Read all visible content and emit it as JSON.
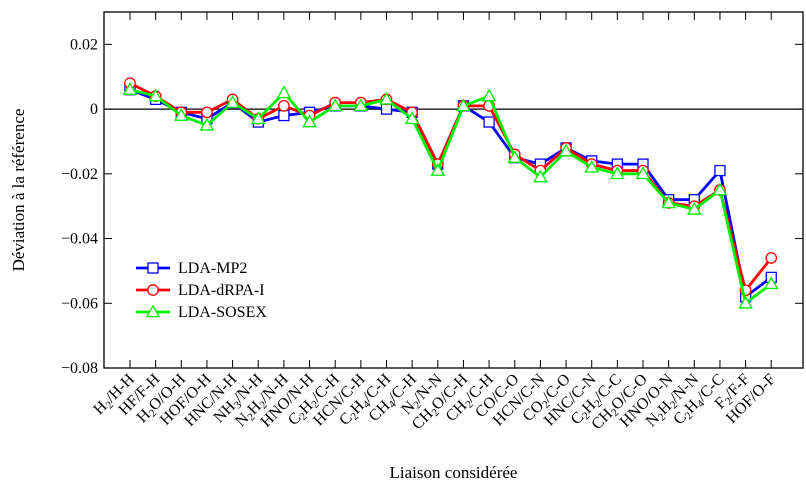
{
  "chart_data": {
    "type": "line",
    "title": "",
    "xlabel": "Liaison considérée",
    "ylabel": "Déviation à la référence",
    "ylim": [
      -0.08,
      0.03
    ],
    "yticks": [
      0.02,
      0,
      -0.02,
      -0.04,
      -0.06,
      -0.08
    ],
    "ytick_labels": [
      "0.02",
      "0",
      "−0.02",
      "−0.04",
      "−0.06",
      "−0.08"
    ],
    "grid": false,
    "legend_position": "bottom-left",
    "zero_line": true,
    "categories": [
      {
        "base": "H",
        "sub": "2",
        "rest": "/H-H"
      },
      {
        "base": "HF/F-H",
        "sub": "",
        "rest": ""
      },
      {
        "base": "H",
        "sub": "2",
        "rest": "O/O-H"
      },
      {
        "base": "HOF/O-H",
        "sub": "",
        "rest": ""
      },
      {
        "base": "HNC/N-H",
        "sub": "",
        "rest": ""
      },
      {
        "base": "NH",
        "sub": "3",
        "rest": "/N-H"
      },
      {
        "parts": [
          [
            "N",
            ""
          ],
          [
            "2",
            "sub"
          ],
          [
            "H",
            ""
          ],
          [
            "2",
            "sub"
          ],
          [
            "/N-H",
            ""
          ]
        ]
      },
      {
        "base": "HNO/N-H",
        "sub": "",
        "rest": ""
      },
      {
        "parts": [
          [
            "C",
            ""
          ],
          [
            "2",
            "sub"
          ],
          [
            "H",
            ""
          ],
          [
            "2",
            "sub"
          ],
          [
            "/C-H",
            ""
          ]
        ]
      },
      {
        "base": "HCN/C-H",
        "sub": "",
        "rest": ""
      },
      {
        "parts": [
          [
            "C",
            ""
          ],
          [
            "2",
            "sub"
          ],
          [
            "H",
            ""
          ],
          [
            "4",
            "sub"
          ],
          [
            "/C-H",
            ""
          ]
        ]
      },
      {
        "base": "CH",
        "sub": "4",
        "rest": "/C-H"
      },
      {
        "base": "N",
        "sub": "2",
        "rest": "/N-N"
      },
      {
        "parts": [
          [
            "CH",
            ""
          ],
          [
            "2",
            "sub"
          ],
          [
            "O/C-H",
            ""
          ]
        ]
      },
      {
        "base": "CH",
        "sub": "2",
        "rest": "/C-H"
      },
      {
        "base": "CO/C-O",
        "sub": "",
        "rest": ""
      },
      {
        "base": "HCN/C-N",
        "sub": "",
        "rest": ""
      },
      {
        "base": "CO",
        "sub": "2",
        "rest": "/C-O"
      },
      {
        "base": "HNC/C-N",
        "sub": "",
        "rest": ""
      },
      {
        "parts": [
          [
            "C",
            ""
          ],
          [
            "2",
            "sub"
          ],
          [
            "H",
            ""
          ],
          [
            "2",
            "sub"
          ],
          [
            "/C-C",
            ""
          ]
        ]
      },
      {
        "parts": [
          [
            "CH",
            ""
          ],
          [
            "2",
            "sub"
          ],
          [
            "O/C-O",
            ""
          ]
        ]
      },
      {
        "base": "HNO/O-N",
        "sub": "",
        "rest": ""
      },
      {
        "parts": [
          [
            "N",
            ""
          ],
          [
            "2",
            "sub"
          ],
          [
            "H",
            ""
          ],
          [
            "2",
            "sub"
          ],
          [
            "/N-N",
            ""
          ]
        ]
      },
      {
        "parts": [
          [
            "C",
            ""
          ],
          [
            "2",
            "sub"
          ],
          [
            "H",
            ""
          ],
          [
            "4",
            "sub"
          ],
          [
            "/C-C",
            ""
          ]
        ]
      },
      {
        "base": "F",
        "sub": "2",
        "rest": "/F-F"
      },
      {
        "base": "HOF/O-F",
        "sub": "",
        "rest": ""
      }
    ],
    "series": [
      {
        "name": "LDA-MP2",
        "color": "#0000ff",
        "marker": "square",
        "values": [
          0.006,
          0.003,
          -0.001,
          -0.003,
          0.002,
          -0.004,
          -0.002,
          -0.001,
          0.001,
          0.001,
          0.0,
          -0.001,
          -0.017,
          0.001,
          -0.004,
          -0.015,
          -0.017,
          -0.012,
          -0.016,
          -0.017,
          -0.017,
          -0.028,
          -0.028,
          -0.019,
          -0.058,
          -0.052
        ]
      },
      {
        "name": "LDA-dRPA-I",
        "color": "#ff0000",
        "marker": "circle",
        "values": [
          0.008,
          0.004,
          -0.001,
          -0.001,
          0.003,
          -0.003,
          0.001,
          -0.002,
          0.002,
          0.002,
          0.003,
          -0.001,
          -0.017,
          0.001,
          0.001,
          -0.014,
          -0.019,
          -0.012,
          -0.017,
          -0.019,
          -0.019,
          -0.029,
          -0.03,
          -0.025,
          -0.056,
          -0.046
        ]
      },
      {
        "name": "LDA-SOSEX",
        "color": "#00ee00",
        "marker": "triangle",
        "values": [
          0.006,
          0.004,
          -0.002,
          -0.005,
          0.002,
          -0.003,
          0.005,
          -0.004,
          0.001,
          0.001,
          0.003,
          -0.003,
          -0.019,
          0.001,
          0.004,
          -0.015,
          -0.021,
          -0.013,
          -0.018,
          -0.02,
          -0.02,
          -0.029,
          -0.031,
          -0.025,
          -0.06,
          -0.054
        ]
      }
    ]
  }
}
